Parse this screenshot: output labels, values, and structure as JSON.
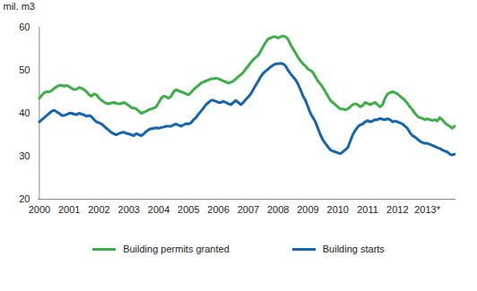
{
  "chart_data": {
    "type": "line",
    "y_label": "mil. m3",
    "categories": [
      "2000",
      null,
      null,
      null,
      null,
      null,
      null,
      null,
      null,
      null,
      null,
      null,
      "2001",
      null,
      null,
      null,
      null,
      null,
      null,
      null,
      null,
      null,
      null,
      null,
      "2002",
      null,
      null,
      null,
      null,
      null,
      null,
      null,
      null,
      null,
      null,
      null,
      "2003",
      null,
      null,
      null,
      null,
      null,
      null,
      null,
      null,
      null,
      null,
      null,
      "2004",
      null,
      null,
      null,
      null,
      null,
      null,
      null,
      null,
      null,
      null,
      null,
      "2005",
      null,
      null,
      null,
      null,
      null,
      null,
      null,
      null,
      null,
      null,
      null,
      "2006",
      null,
      null,
      null,
      null,
      null,
      null,
      null,
      null,
      null,
      null,
      null,
      "2007",
      null,
      null,
      null,
      null,
      null,
      null,
      null,
      null,
      null,
      null,
      null,
      "2008",
      null,
      null,
      null,
      null,
      null,
      null,
      null,
      null,
      null,
      null,
      null,
      "2009",
      null,
      null,
      null,
      null,
      null,
      null,
      null,
      null,
      null,
      null,
      null,
      "2010",
      null,
      null,
      null,
      null,
      null,
      null,
      null,
      null,
      null,
      null,
      null,
      "2011",
      null,
      null,
      null,
      null,
      null,
      null,
      null,
      null,
      null,
      null,
      null,
      "2012",
      null,
      null,
      null,
      null,
      null,
      null,
      null,
      null,
      null,
      null,
      null,
      "2013*",
      null,
      null,
      null,
      null,
      null,
      null,
      null,
      null,
      null,
      null,
      null
    ],
    "series": [
      {
        "name": "Building permits granted",
        "color": "#3dae49",
        "values": [
          43.5,
          44.2,
          44.8,
          45.0,
          45.0,
          45.3,
          45.8,
          46.2,
          46.5,
          46.5,
          46.3,
          46.5,
          46.2,
          45.8,
          45.5,
          45.6,
          46.0,
          45.8,
          45.5,
          45.0,
          44.3,
          44.0,
          44.5,
          44.3,
          43.5,
          43.0,
          42.6,
          42.3,
          42.2,
          42.4,
          42.5,
          42.3,
          42.2,
          42.3,
          42.5,
          42.2,
          41.8,
          41.3,
          41.2,
          41.0,
          40.5,
          40.0,
          40.2,
          40.5,
          40.8,
          41.0,
          41.2,
          41.5,
          42.5,
          43.5,
          44.0,
          43.8,
          43.5,
          44.0,
          45.0,
          45.5,
          45.2,
          45.0,
          44.8,
          44.5,
          44.3,
          44.8,
          45.5,
          46.0,
          46.5,
          47.0,
          47.3,
          47.5,
          47.8,
          48.0,
          48.0,
          48.2,
          48.0,
          47.8,
          47.5,
          47.3,
          47.0,
          47.2,
          47.5,
          48.0,
          48.5,
          49.0,
          49.5,
          50.3,
          51.0,
          51.8,
          52.5,
          53.0,
          53.5,
          54.5,
          55.5,
          56.5,
          57.3,
          57.5,
          57.8,
          57.8,
          57.5,
          57.8,
          58.0,
          57.8,
          57.2,
          56.0,
          55.0,
          54.0,
          53.0,
          52.2,
          51.5,
          51.0,
          50.3,
          50.0,
          49.5,
          48.5,
          47.5,
          46.8,
          46.0,
          45.0,
          44.0,
          43.0,
          42.5,
          42.0,
          41.5,
          41.0,
          41.0,
          40.8,
          41.0,
          41.5,
          42.0,
          42.2,
          42.0,
          41.5,
          41.8,
          42.5,
          42.3,
          42.0,
          42.3,
          42.5,
          42.0,
          41.5,
          42.0,
          43.5,
          44.5,
          44.8,
          45.0,
          44.8,
          44.5,
          44.0,
          43.5,
          43.0,
          42.3,
          41.5,
          40.8,
          40.0,
          39.3,
          39.0,
          38.8,
          38.5,
          38.7,
          38.5,
          38.3,
          38.5,
          38.2,
          39.0,
          38.5,
          37.8,
          37.3,
          37.0,
          36.5,
          37.0
        ]
      },
      {
        "name": "Building starts",
        "color": "#1565b0",
        "values": [
          38.0,
          38.5,
          39.0,
          39.5,
          40.0,
          40.5,
          40.7,
          40.3,
          40.0,
          39.5,
          39.5,
          39.7,
          40.0,
          40.0,
          39.8,
          39.7,
          40.0,
          39.8,
          39.6,
          39.3,
          39.5,
          39.2,
          38.5,
          38.0,
          37.8,
          37.5,
          37.0,
          36.5,
          36.0,
          35.5,
          35.2,
          35.0,
          35.3,
          35.5,
          35.6,
          35.3,
          35.2,
          35.0,
          34.8,
          35.3,
          35.0,
          34.8,
          35.2,
          35.8,
          36.2,
          36.4,
          36.5,
          36.6,
          36.5,
          36.7,
          36.8,
          37.0,
          37.0,
          37.0,
          37.3,
          37.5,
          37.2,
          37.0,
          37.3,
          37.6,
          37.5,
          37.8,
          38.5,
          39.0,
          39.8,
          40.5,
          41.2,
          42.0,
          42.5,
          43.0,
          43.0,
          42.8,
          42.5,
          42.5,
          42.8,
          42.5,
          42.2,
          42.0,
          42.5,
          43.0,
          42.5,
          42.0,
          42.5,
          43.2,
          43.8,
          44.5,
          45.5,
          46.5,
          47.5,
          48.5,
          49.3,
          49.8,
          50.3,
          50.8,
          51.2,
          51.5,
          51.5,
          51.6,
          51.5,
          51.0,
          50.0,
          49.2,
          48.5,
          47.8,
          46.8,
          45.5,
          44.0,
          43.0,
          41.5,
          40.0,
          39.0,
          38.0,
          36.5,
          35.0,
          33.8,
          33.0,
          32.2,
          31.5,
          31.2,
          31.0,
          30.8,
          30.6,
          31.0,
          31.5,
          32.0,
          33.5,
          35.0,
          36.0,
          36.8,
          37.3,
          37.5,
          38.0,
          38.3,
          38.0,
          38.2,
          38.5,
          38.5,
          38.8,
          38.6,
          38.5,
          38.7,
          38.5,
          38.0,
          38.2,
          38.0,
          37.8,
          37.5,
          37.0,
          36.5,
          35.5,
          34.8,
          34.5,
          34.0,
          33.5,
          33.2,
          33.0,
          33.0,
          32.8,
          32.5,
          32.3,
          32.0,
          31.8,
          31.5,
          31.2,
          31.0,
          30.5,
          30.3,
          30.5
        ]
      }
    ],
    "ylim": [
      20,
      60
    ],
    "yticks": [
      20,
      30,
      40,
      50,
      60
    ],
    "grid": false,
    "legend": "bottom"
  }
}
